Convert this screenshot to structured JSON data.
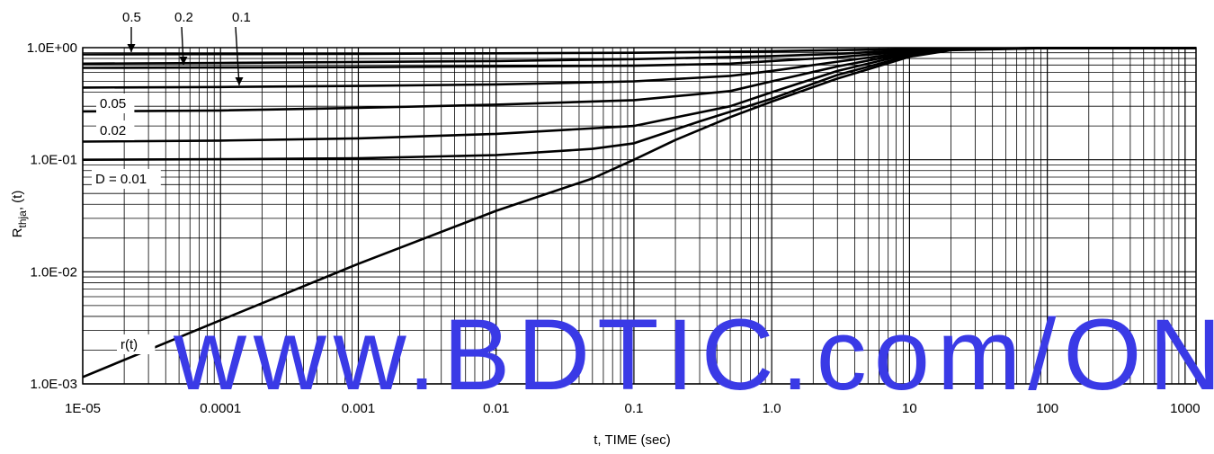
{
  "chart_data": {
    "type": "line",
    "xlabel": "t, TIME (sec)",
    "ylabel": {
      "main": "R",
      "sub": "thja",
      "suffix": ", (t)"
    },
    "xscale": "log",
    "yscale": "log",
    "xlim": [
      1e-05,
      1200
    ],
    "ylim": [
      0.001,
      1.0
    ],
    "grid": true,
    "x_tick_labels": [
      "1E-05",
      "0.0001",
      "0.001",
      "0.01",
      "0.1",
      "1.0",
      "10",
      "100",
      "1000"
    ],
    "x_tick_values": [
      1e-05,
      0.0001,
      0.001,
      0.01,
      0.1,
      1,
      10,
      100,
      1000
    ],
    "y_tick_labels": [
      "1.0E-03",
      "1.0E-02",
      "1.0E-01",
      "1.0E+00"
    ],
    "y_tick_values": [
      0.001,
      0.01,
      0.1,
      1
    ],
    "series": [
      {
        "name": "0.5",
        "x": [
          1e-05,
          0.0001,
          0.001,
          0.01,
          0.1,
          1,
          3,
          10,
          20,
          100,
          1200
        ],
        "y": [
          0.87,
          0.875,
          0.88,
          0.89,
          0.9,
          0.93,
          0.95,
          0.97,
          0.98,
          0.99,
          0.99
        ]
      },
      {
        "name": "0.2",
        "x": [
          1e-05,
          0.0001,
          0.001,
          0.01,
          0.1,
          1,
          3,
          10,
          20,
          100,
          1200
        ],
        "y": [
          0.72,
          0.73,
          0.745,
          0.76,
          0.79,
          0.84,
          0.88,
          0.95,
          0.975,
          0.99,
          0.99
        ]
      },
      {
        "name": "0.1",
        "x": [
          1e-05,
          0.0001,
          0.001,
          0.01,
          0.1,
          0.5,
          1,
          3,
          10,
          20,
          100,
          1200
        ],
        "y": [
          0.66,
          0.665,
          0.67,
          0.68,
          0.69,
          0.72,
          0.76,
          0.82,
          0.93,
          0.975,
          0.99,
          0.99
        ]
      },
      {
        "name": "0.05",
        "x": [
          1e-05,
          0.0001,
          0.001,
          0.01,
          0.1,
          0.5,
          1,
          3,
          10,
          20,
          100,
          1200
        ],
        "y": [
          0.44,
          0.445,
          0.455,
          0.47,
          0.5,
          0.56,
          0.62,
          0.75,
          0.91,
          0.97,
          0.99,
          0.99
        ]
      },
      {
        "name": "0.02",
        "x": [
          1e-05,
          0.0001,
          0.001,
          0.01,
          0.1,
          0.5,
          1,
          3,
          10,
          20,
          100,
          1200
        ],
        "y": [
          0.27,
          0.275,
          0.29,
          0.31,
          0.34,
          0.41,
          0.5,
          0.68,
          0.9,
          0.97,
          0.99,
          0.99
        ]
      },
      {
        "name": "D = 0.01",
        "x": [
          1e-05,
          0.0001,
          0.001,
          0.01,
          0.1,
          0.5,
          1,
          3,
          10,
          20,
          100,
          1200
        ],
        "y": [
          0.145,
          0.148,
          0.155,
          0.17,
          0.2,
          0.3,
          0.4,
          0.62,
          0.88,
          0.97,
          0.99,
          0.99
        ]
      },
      {
        "name": "",
        "x": [
          1e-05,
          0.0001,
          0.001,
          0.01,
          0.05,
          0.1,
          0.3,
          1,
          3,
          10,
          20,
          100,
          1200
        ],
        "y": [
          0.1,
          0.101,
          0.103,
          0.11,
          0.125,
          0.14,
          0.22,
          0.35,
          0.57,
          0.85,
          0.96,
          0.99,
          0.99
        ]
      },
      {
        "name": "r(t)",
        "x": [
          1e-05,
          0.0001,
          0.001,
          0.01,
          0.05,
          0.1,
          0.2,
          0.5,
          1,
          3,
          10,
          20,
          100,
          1200
        ],
        "y": [
          0.00115,
          0.0037,
          0.0118,
          0.035,
          0.068,
          0.1,
          0.15,
          0.24,
          0.33,
          0.53,
          0.83,
          0.95,
          0.99,
          0.99
        ]
      }
    ],
    "annotations": [
      "0.5",
      "0.2",
      "0.1",
      "0.05",
      "0.02",
      "D = 0.01",
      "r(t)"
    ]
  },
  "watermark": "www.BDTIC.com/ON"
}
